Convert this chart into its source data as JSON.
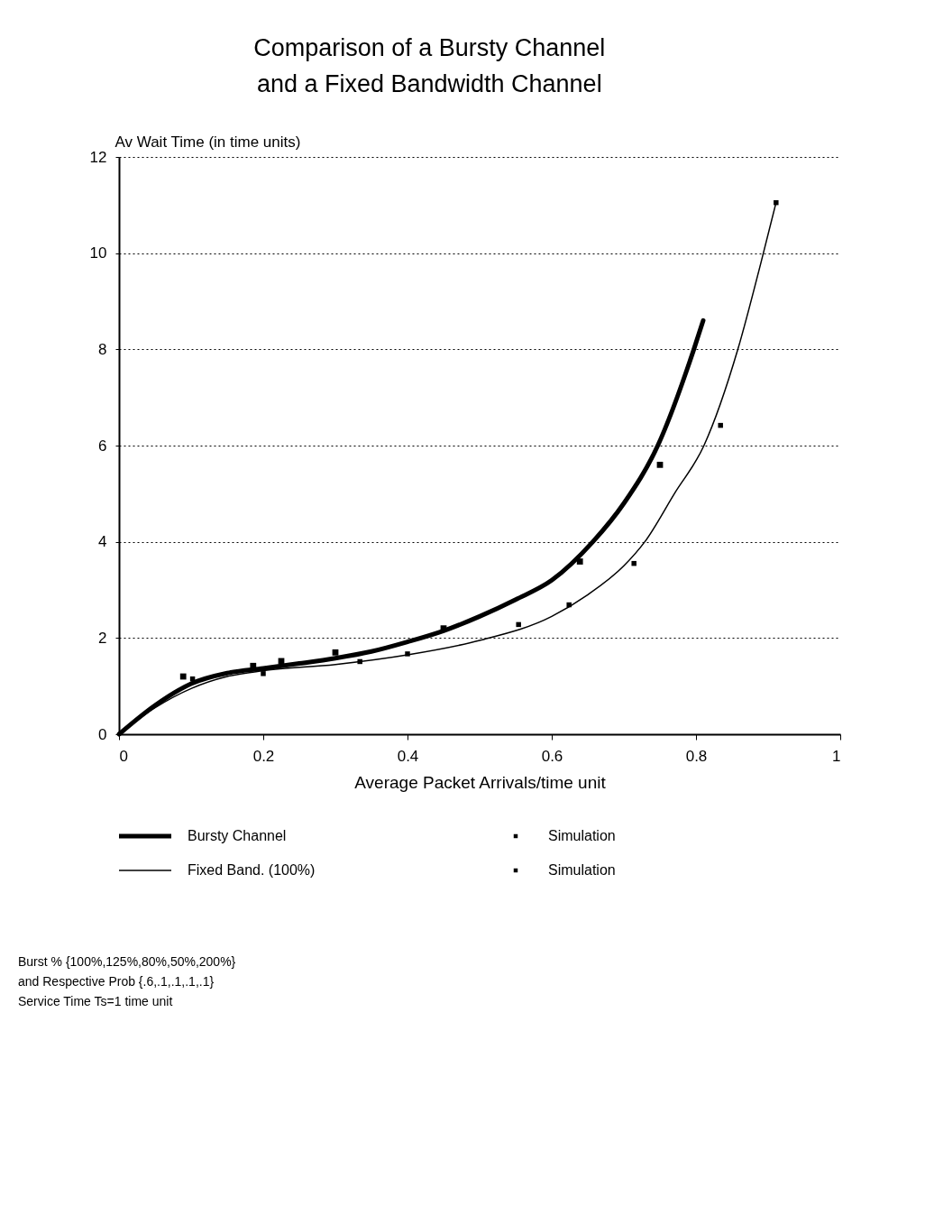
{
  "chart_data": {
    "type": "line",
    "title": [
      "Comparison of a Bursty Channel",
      "and a Fixed Bandwidth Channel"
    ],
    "xlabel": "Average  Packet Arrivals/time unit",
    "ylabel": "Av Wait Time (in time units)",
    "xlim": [
      0,
      1
    ],
    "ylim": [
      0,
      12
    ],
    "xticks": [
      0,
      0.2,
      0.4,
      0.6,
      0.8,
      1
    ],
    "yticks": [
      0,
      2,
      4,
      6,
      8,
      10,
      12
    ],
    "grid": "y",
    "legend": "bottom",
    "series": [
      {
        "name": "Bursty Channel",
        "color": "#000000",
        "x": [
          0,
          0.05,
          0.1,
          0.15,
          0.2,
          0.25,
          0.3,
          0.35,
          0.4,
          0.45,
          0.5,
          0.55,
          0.6,
          0.657,
          0.7,
          0.747,
          0.797,
          0.81
        ],
        "values": [
          0,
          0.6,
          1.05,
          1.27,
          1.37,
          1.47,
          1.58,
          1.72,
          1.92,
          2.15,
          2.45,
          2.8,
          3.2,
          4.0,
          4.8,
          6.0,
          8.0,
          8.6
        ]
      },
      {
        "name": "Fixed Band. (100%)",
        "color": "#000000",
        "x": [
          0,
          0.05,
          0.1,
          0.15,
          0.2,
          0.3,
          0.4,
          0.5,
          0.6,
          0.65,
          0.7,
          0.729,
          0.77,
          0.811,
          0.858,
          0.89,
          0.911
        ],
        "values": [
          0,
          0.55,
          0.95,
          1.2,
          1.32,
          1.45,
          1.65,
          1.95,
          2.45,
          2.9,
          3.5,
          4.0,
          5.0,
          6.0,
          8.0,
          9.8,
          11.05
        ]
      },
      {
        "name": "Simulation",
        "type": "scatter",
        "marker": "square",
        "color": "#000000",
        "x": [
          0.089,
          0.186,
          0.225,
          0.3,
          0.45,
          0.639,
          0.75
        ],
        "values": [
          1.2,
          1.42,
          1.52,
          1.7,
          2.2,
          3.59,
          5.6
        ]
      },
      {
        "name": "Simulation",
        "type": "scatter",
        "marker": "square",
        "color": "#000000",
        "x": [
          0.102,
          0.2,
          0.334,
          0.4,
          0.554,
          0.624,
          0.714,
          0.834,
          0.911
        ],
        "values": [
          1.15,
          1.26,
          1.51,
          1.67,
          2.28,
          2.69,
          3.55,
          6.42,
          11.05
        ]
      }
    ],
    "annotations": [
      "Burst % {100%,125%,80%,50%,200%}",
      "and Respective Prob {.6,.1,.1,.1,.1}",
      "Service Time Ts=1 time unit"
    ]
  }
}
